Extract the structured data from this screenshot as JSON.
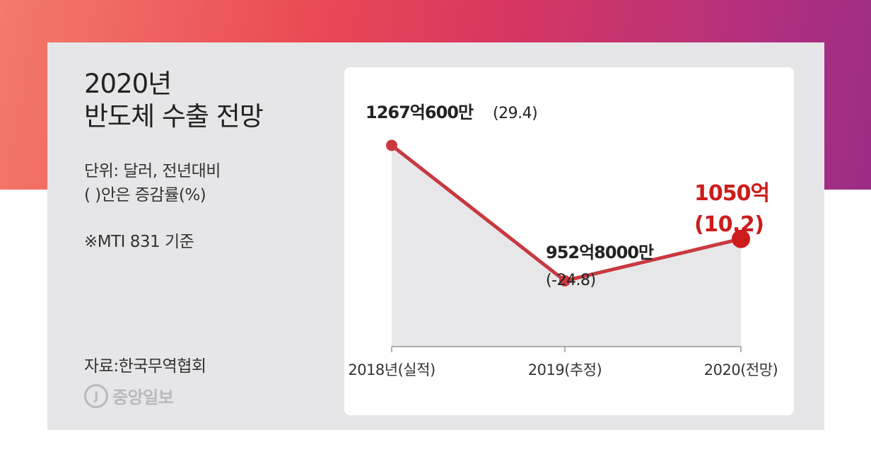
{
  "header": {
    "title_line1": "2020년",
    "title_line2": "반도체 수출 전망"
  },
  "meta": {
    "unit_line1": "단위: 달러, 전년대비",
    "unit_line2": "( )안은 증감률(%)",
    "note": "※MTI 831 기준"
  },
  "footer": {
    "source": "자료:한국무역협회",
    "logo_mark": "J",
    "logo_text": "중앙일보"
  },
  "colors": {
    "line": "#c8393f",
    "highlight": "#cc1c1c",
    "area": "#e7e7e9",
    "axis": "#999999"
  },
  "chart_data": {
    "type": "line",
    "categories": [
      "2018년(실적)",
      "2019(추정)",
      "2020(전망)"
    ],
    "values": [
      126706,
      95280,
      105000
    ],
    "value_unit": "백만 달러",
    "label_main": [
      "1267억600만",
      "952억8000만",
      "1050억"
    ],
    "label_change": [
      "(29.4)",
      "(-24.8)",
      "(10.2)"
    ],
    "highlight_index": 2,
    "ylim": [
      80000,
      135000
    ]
  }
}
